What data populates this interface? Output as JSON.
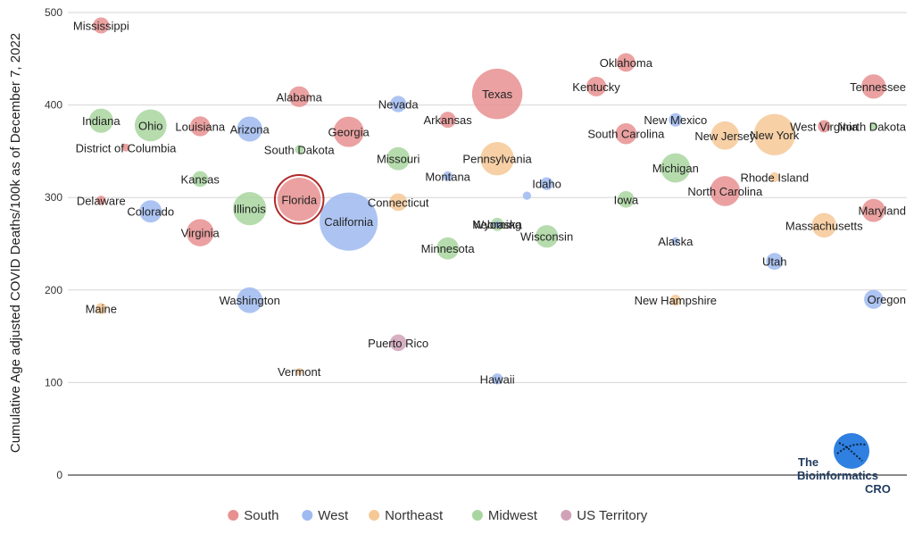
{
  "chart_data": {
    "type": "scatter",
    "title": "",
    "xlabel": "",
    "ylabel": "Cumulative Age adjusted COVID Deaths/100k as of December 7, 2022",
    "ylim": [
      0,
      500
    ],
    "yticks": [
      0,
      100,
      200,
      300,
      400,
      500
    ],
    "grid": true,
    "legend_position": "bottom",
    "categories": [
      {
        "name": "South",
        "color": "#e89090"
      },
      {
        "name": "West",
        "color": "#9fbaf0"
      },
      {
        "name": "Northeast",
        "color": "#f6c896"
      },
      {
        "name": "Midwest",
        "color": "#a9d6a0"
      },
      {
        "name": "US Territory",
        "color": "#d0a2b8"
      }
    ],
    "points": [
      {
        "label": "Mississippi",
        "x": 1,
        "y": 486,
        "size": 3.0,
        "category": "South"
      },
      {
        "label": "District of Columbia",
        "x": 1.5,
        "y": 354,
        "size": 0.7,
        "category": "South"
      },
      {
        "label": "Indiana",
        "x": 1,
        "y": 383,
        "size": 6.8,
        "category": "Midwest"
      },
      {
        "label": "Delaware",
        "x": 1,
        "y": 297,
        "size": 1.0,
        "category": "South"
      },
      {
        "label": "Maine",
        "x": 1,
        "y": 180,
        "size": 1.4,
        "category": "Northeast"
      },
      {
        "label": "Ohio",
        "x": 2,
        "y": 378,
        "size": 11.8,
        "category": "Midwest"
      },
      {
        "label": "Colorado",
        "x": 2,
        "y": 285,
        "size": 5.8,
        "category": "West"
      },
      {
        "label": "Louisiana",
        "x": 3,
        "y": 377,
        "size": 4.6,
        "category": "South"
      },
      {
        "label": "Kansas",
        "x": 3,
        "y": 320,
        "size": 2.9,
        "category": "Midwest"
      },
      {
        "label": "Virginia",
        "x": 3,
        "y": 262,
        "size": 8.6,
        "category": "South"
      },
      {
        "label": "Arizona",
        "x": 4,
        "y": 374,
        "size": 7.3,
        "category": "West"
      },
      {
        "label": "Illinois",
        "x": 4,
        "y": 288,
        "size": 12.8,
        "category": "Midwest"
      },
      {
        "label": "Washington",
        "x": 4,
        "y": 189,
        "size": 7.7,
        "category": "West"
      },
      {
        "label": "Alabama",
        "x": 5,
        "y": 409,
        "size": 5.0,
        "category": "South"
      },
      {
        "label": "South Dakota",
        "x": 5,
        "y": 352,
        "size": 0.9,
        "category": "Midwest"
      },
      {
        "label": "Florida",
        "x": 5,
        "y": 298,
        "size": 21.8,
        "category": "South"
      },
      {
        "label": "Vermont",
        "x": 5,
        "y": 112,
        "size": 0.6,
        "category": "Northeast"
      },
      {
        "label": "Georgia",
        "x": 6,
        "y": 371,
        "size": 10.7,
        "category": "South"
      },
      {
        "label": "California",
        "x": 6,
        "y": 274,
        "size": 39.2,
        "category": "West"
      },
      {
        "label": "Nevada",
        "x": 7,
        "y": 401,
        "size": 3.1,
        "category": "West"
      },
      {
        "label": "Missouri",
        "x": 7,
        "y": 342,
        "size": 6.2,
        "category": "Midwest"
      },
      {
        "label": "Connecticut",
        "x": 7,
        "y": 295,
        "size": 3.6,
        "category": "Northeast"
      },
      {
        "label": "Puerto Rico",
        "x": 7,
        "y": 143,
        "size": 3.2,
        "category": "US Territory"
      },
      {
        "label": "Arkansas",
        "x": 8,
        "y": 384,
        "size": 3.0,
        "category": "South"
      },
      {
        "label": "Montana",
        "x": 8,
        "y": 323,
        "size": 1.1,
        "category": "West"
      },
      {
        "label": "Minnesota",
        "x": 8,
        "y": 245,
        "size": 5.7,
        "category": "Midwest"
      },
      {
        "label": "Texas",
        "x": 9,
        "y": 412,
        "size": 29.5,
        "category": "South"
      },
      {
        "label": "Pennsylvania",
        "x": 9,
        "y": 342,
        "size": 13.0,
        "category": "Northeast"
      },
      {
        "label": "Wyoming",
        "x": 9,
        "y": 271,
        "size": 0.6,
        "category": "West"
      },
      {
        "label": "Nebraska",
        "x": 9,
        "y": 271,
        "size": 2.0,
        "category": "Midwest"
      },
      {
        "label": "Hawaii",
        "x": 9,
        "y": 104,
        "size": 1.4,
        "category": "West"
      },
      {
        "label": "Idaho",
        "x": 10,
        "y": 315,
        "size": 1.9,
        "category": "West"
      },
      {
        "label": "Idaho-small",
        "x": 9.6,
        "y": 302,
        "size": 0.8,
        "category": "West",
        "hideLabel": true
      },
      {
        "label": "Wisconsin",
        "x": 10,
        "y": 258,
        "size": 5.9,
        "category": "Midwest"
      },
      {
        "label": "Kentucky",
        "x": 11,
        "y": 420,
        "size": 4.5,
        "category": "South"
      },
      {
        "label": "Oklahoma",
        "x": 11.6,
        "y": 446,
        "size": 4.0,
        "category": "South"
      },
      {
        "label": "South Carolina",
        "x": 11.6,
        "y": 369,
        "size": 5.1,
        "category": "South"
      },
      {
        "label": "Iowa",
        "x": 11.6,
        "y": 298,
        "size": 3.2,
        "category": "Midwest"
      },
      {
        "label": "New Mexico",
        "x": 12.6,
        "y": 384,
        "size": 2.1,
        "category": "West"
      },
      {
        "label": "Michigan",
        "x": 12.6,
        "y": 332,
        "size": 10.0,
        "category": "Midwest"
      },
      {
        "label": "Alaska",
        "x": 12.6,
        "y": 253,
        "size": 0.7,
        "category": "West"
      },
      {
        "label": "New Hampshire",
        "x": 12.6,
        "y": 189,
        "size": 1.4,
        "category": "Northeast"
      },
      {
        "label": "New Jersey",
        "x": 13.6,
        "y": 367,
        "size": 9.3,
        "category": "Northeast"
      },
      {
        "label": "North Carolina",
        "x": 13.6,
        "y": 307,
        "size": 10.4,
        "category": "South"
      },
      {
        "label": "Rhode Island",
        "x": 14.6,
        "y": 322,
        "size": 1.1,
        "category": "Northeast"
      },
      {
        "label": "New York",
        "x": 14.6,
        "y": 368,
        "size": 19.7,
        "category": "Northeast"
      },
      {
        "label": "Utah",
        "x": 14.6,
        "y": 231,
        "size": 3.3,
        "category": "West"
      },
      {
        "label": "West Virginia",
        "x": 15.6,
        "y": 377,
        "size": 1.8,
        "category": "South"
      },
      {
        "label": "Massachusetts",
        "x": 15.6,
        "y": 270,
        "size": 7.0,
        "category": "Northeast"
      },
      {
        "label": "Tennessee",
        "x": 16.6,
        "y": 420,
        "size": 6.9,
        "category": "South"
      },
      {
        "label": "North Dakota",
        "x": 16.6,
        "y": 377,
        "size": 0.8,
        "category": "Midwest"
      },
      {
        "label": "Maryland",
        "x": 16.6,
        "y": 286,
        "size": 6.2,
        "category": "South"
      },
      {
        "label": "Oregon",
        "x": 16.6,
        "y": 190,
        "size": 4.2,
        "category": "West"
      }
    ],
    "highlight": "Florida"
  },
  "logo": {
    "line1": "The",
    "line2": "Bioinformatics",
    "line3": "CRO"
  }
}
